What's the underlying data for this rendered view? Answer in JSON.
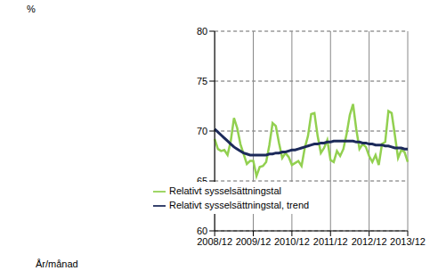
{
  "chart_data": {
    "type": "line",
    "y_label": "%",
    "x_label": "År/månad",
    "categories": [
      "2008/12",
      null,
      null,
      null,
      null,
      null,
      null,
      null,
      null,
      null,
      null,
      null,
      "2009/12",
      null,
      null,
      null,
      null,
      null,
      null,
      null,
      null,
      null,
      null,
      null,
      "2010/12",
      null,
      null,
      null,
      null,
      null,
      null,
      null,
      null,
      null,
      null,
      null,
      "2011/12",
      null,
      null,
      null,
      null,
      null,
      null,
      null,
      null,
      null,
      null,
      null,
      "2012/12",
      null,
      null,
      null,
      null,
      null,
      null,
      null,
      null,
      null,
      null,
      null,
      "2013/12"
    ],
    "series": [
      {
        "name": "Relativt sysselsättningstal",
        "color": "#92d050",
        "values": [
          69.2,
          68.2,
          68.0,
          68.1,
          67.6,
          69.0,
          71.3,
          70.3,
          68.7,
          67.7,
          66.7,
          67.0,
          67.0,
          65.5,
          66.4,
          66.5,
          66.9,
          68.6,
          70.8,
          70.5,
          68.8,
          67.3,
          67.8,
          67.4,
          66.6,
          66.8,
          67.0,
          66.5,
          68.3,
          69.5,
          71.7,
          71.8,
          69.5,
          67.8,
          68.3,
          69.1,
          67.1,
          66.9,
          68.0,
          67.5,
          68.2,
          69.7,
          71.6,
          72.7,
          70.2,
          68.2,
          68.7,
          68.4,
          67.5,
          66.9,
          67.6,
          66.6,
          68.7,
          68.9,
          72.0,
          71.8,
          69.6,
          67.3,
          68.1,
          67.9,
          66.9
        ]
      },
      {
        "name": "Relativt sysselsättningstal, trend",
        "color": "#1c2a5a",
        "values": [
          70.2,
          69.9,
          69.6,
          69.3,
          69.0,
          68.7,
          68.4,
          68.2,
          68.0,
          67.8,
          67.7,
          67.6,
          67.6,
          67.6,
          67.6,
          67.6,
          67.6,
          67.7,
          67.7,
          67.8,
          67.8,
          67.9,
          67.9,
          68.0,
          68.1,
          68.1,
          68.2,
          68.3,
          68.4,
          68.5,
          68.6,
          68.7,
          68.7,
          68.8,
          68.8,
          68.9,
          68.9,
          69.0,
          69.0,
          69.0,
          69.0,
          69.0,
          69.0,
          69.0,
          68.9,
          68.9,
          68.8,
          68.8,
          68.7,
          68.7,
          68.6,
          68.6,
          68.6,
          68.5,
          68.5,
          68.4,
          68.3,
          68.3,
          68.3,
          68.2,
          68.2
        ]
      }
    ],
    "ylim": [
      60,
      80
    ],
    "yticks": [
      60,
      65,
      70,
      75,
      80
    ],
    "grid": true,
    "legend": "bottom"
  }
}
